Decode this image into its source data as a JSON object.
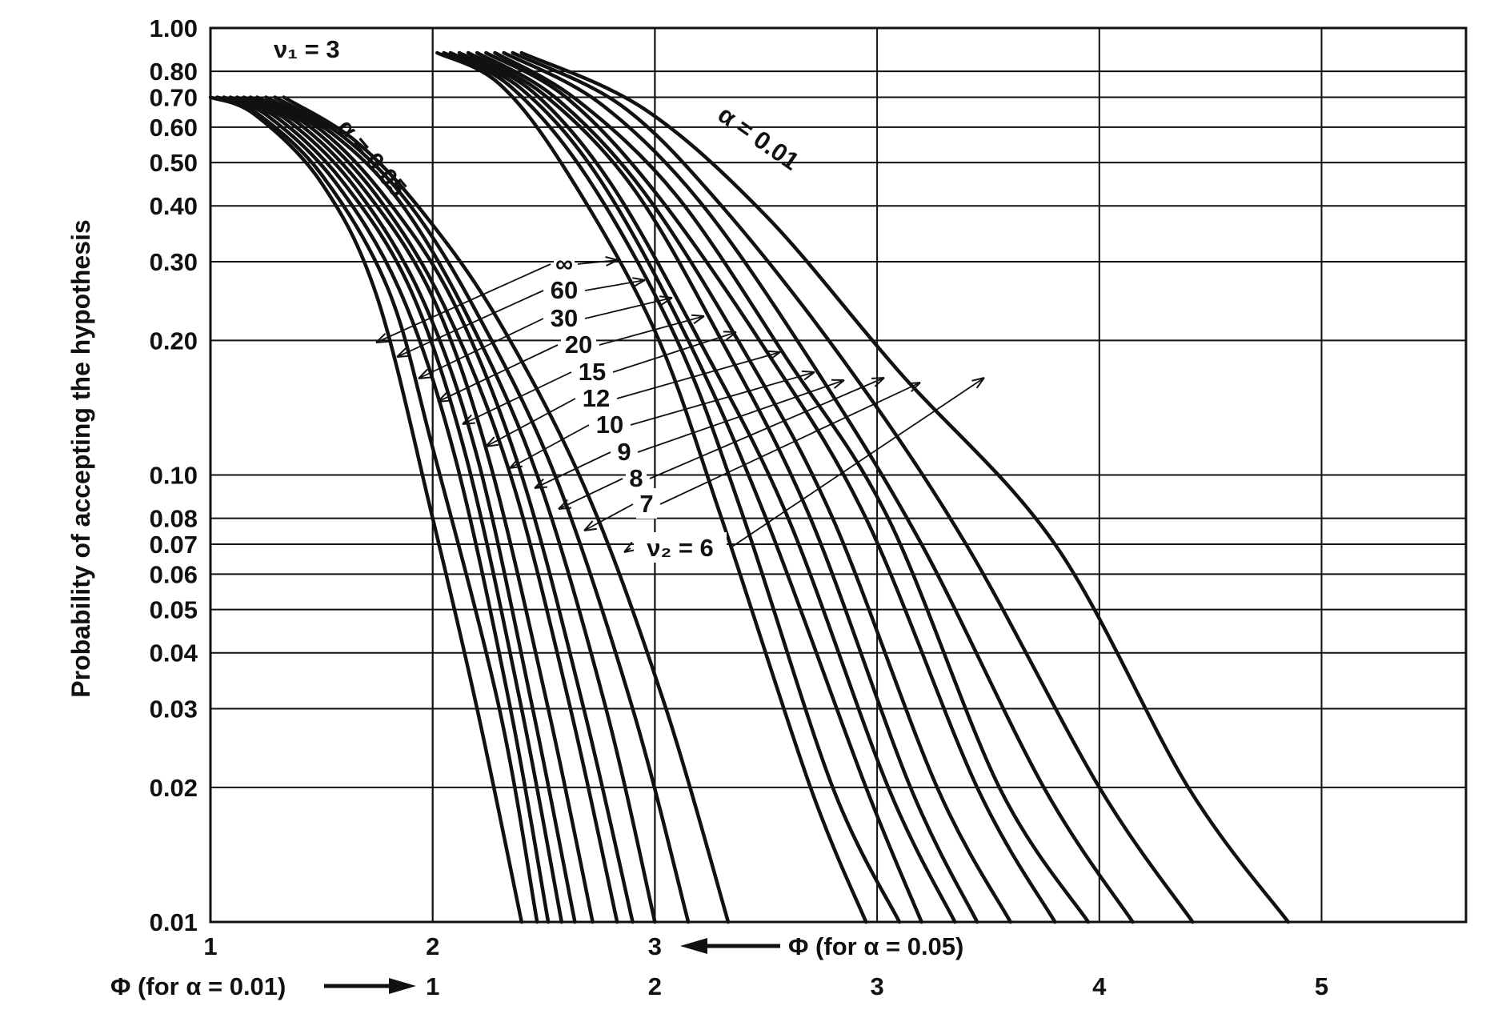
{
  "chart_data": {
    "type": "line",
    "title": "",
    "ylabel": "Probability of accepting the hypothesis",
    "y_scale": "log",
    "ylim": [
      0.01,
      1.0
    ],
    "y_ticks": [
      "1.00",
      "0.80",
      "0.70",
      "0.60",
      "0.50",
      "0.40",
      "0.30",
      "0.20",
      "0.10",
      "0.08",
      "0.07",
      "0.06",
      "0.05",
      "0.04",
      "0.03",
      "0.02",
      "0.01"
    ],
    "y_tick_values": [
      1.0,
      0.8,
      0.7,
      0.6,
      0.5,
      0.4,
      0.3,
      0.2,
      0.1,
      0.08,
      0.07,
      0.06,
      0.05,
      0.04,
      0.03,
      0.02,
      0.01
    ],
    "x_axes": [
      {
        "label": "Φ (for α = 0.05)",
        "ticks": [
          "1",
          "2",
          "3"
        ],
        "tick_values": [
          1,
          2,
          3
        ],
        "xlim": [
          1,
          6.65
        ]
      },
      {
        "label": "Φ (for α = 0.01)",
        "ticks": [
          "1",
          "2",
          "3",
          "4",
          "5"
        ],
        "tick_values": [
          1,
          2,
          3,
          4,
          5
        ],
        "xlim": [
          0,
          5.65
        ]
      }
    ],
    "grid": true,
    "nu1_label": "ν₁ = 3",
    "nu2_labels": [
      "∞",
      "60",
      "30",
      "20",
      "15",
      "12",
      "10",
      "9",
      "8",
      "7",
      "ν₂ = 6"
    ],
    "alpha_labels": [
      "α = 0.05",
      "α = 0.01"
    ],
    "groups": [
      {
        "name": "α = 0.05",
        "series": [
          {
            "name": "∞",
            "points": [
              [
                1.0,
                0.7
              ],
              [
                1.2,
                0.64
              ],
              [
                1.5,
                0.45
              ],
              [
                1.75,
                0.25
              ],
              [
                2.0,
                0.08
              ],
              [
                2.2,
                0.03
              ],
              [
                2.4,
                0.01
              ]
            ]
          },
          {
            "name": "60",
            "points": [
              [
                1.03,
                0.7
              ],
              [
                1.2,
                0.65
              ],
              [
                1.5,
                0.47
              ],
              [
                1.8,
                0.26
              ],
              [
                2.0,
                0.115
              ],
              [
                2.3,
                0.03
              ],
              [
                2.47,
                0.01
              ]
            ]
          },
          {
            "name": "30",
            "points": [
              [
                1.06,
                0.7
              ],
              [
                1.25,
                0.64
              ],
              [
                1.55,
                0.46
              ],
              [
                1.85,
                0.26
              ],
              [
                2.1,
                0.11
              ],
              [
                2.35,
                0.03
              ],
              [
                2.52,
                0.01
              ]
            ]
          },
          {
            "name": "20",
            "points": [
              [
                1.09,
                0.7
              ],
              [
                1.3,
                0.63
              ],
              [
                1.6,
                0.45
              ],
              [
                1.9,
                0.26
              ],
              [
                2.15,
                0.11
              ],
              [
                2.4,
                0.03
              ],
              [
                2.58,
                0.01
              ]
            ]
          },
          {
            "name": "15",
            "points": [
              [
                1.12,
                0.7
              ],
              [
                1.35,
                0.62
              ],
              [
                1.65,
                0.44
              ],
              [
                1.95,
                0.25
              ],
              [
                2.2,
                0.11
              ],
              [
                2.45,
                0.03
              ],
              [
                2.64,
                0.01
              ]
            ]
          },
          {
            "name": "12",
            "points": [
              [
                1.15,
                0.7
              ],
              [
                1.4,
                0.61
              ],
              [
                1.7,
                0.43
              ],
              [
                2.0,
                0.25
              ],
              [
                2.25,
                0.11
              ],
              [
                2.52,
                0.03
              ],
              [
                2.72,
                0.01
              ]
            ]
          },
          {
            "name": "10",
            "points": [
              [
                1.18,
                0.7
              ],
              [
                1.45,
                0.6
              ],
              [
                1.75,
                0.42
              ],
              [
                2.05,
                0.24
              ],
              [
                2.35,
                0.1
              ],
              [
                2.62,
                0.03
              ],
              [
                2.83,
                0.01
              ]
            ]
          },
          {
            "name": "9",
            "points": [
              [
                1.21,
                0.7
              ],
              [
                1.5,
                0.59
              ],
              [
                1.8,
                0.41
              ],
              [
                2.1,
                0.24
              ],
              [
                2.4,
                0.1
              ],
              [
                2.68,
                0.03
              ],
              [
                2.9,
                0.01
              ]
            ]
          },
          {
            "name": "8",
            "points": [
              [
                1.25,
                0.7
              ],
              [
                1.55,
                0.58
              ],
              [
                1.85,
                0.41
              ],
              [
                2.15,
                0.23
              ],
              [
                2.47,
                0.1
              ],
              [
                2.78,
                0.03
              ],
              [
                3.0,
                0.01
              ]
            ]
          },
          {
            "name": "7",
            "points": [
              [
                1.29,
                0.7
              ],
              [
                1.6,
                0.57
              ],
              [
                1.9,
                0.4
              ],
              [
                2.2,
                0.23
              ],
              [
                2.55,
                0.1
              ],
              [
                2.9,
                0.03
              ],
              [
                3.15,
                0.01
              ]
            ]
          },
          {
            "name": "6",
            "points": [
              [
                1.33,
                0.7
              ],
              [
                1.65,
                0.56
              ],
              [
                1.95,
                0.39
              ],
              [
                2.3,
                0.22
              ],
              [
                2.7,
                0.09
              ],
              [
                3.05,
                0.03
              ],
              [
                3.33,
                0.01
              ]
            ]
          }
        ]
      },
      {
        "name": "α = 0.01",
        "series": [
          {
            "name": "∞",
            "points": [
              [
                1.02,
                0.88
              ],
              [
                1.3,
                0.75
              ],
              [
                1.6,
                0.48
              ],
              [
                2.0,
                0.21
              ],
              [
                2.3,
                0.08
              ],
              [
                2.7,
                0.02
              ],
              [
                2.95,
                0.01
              ]
            ]
          },
          {
            "name": "60",
            "points": [
              [
                1.05,
                0.88
              ],
              [
                1.35,
                0.74
              ],
              [
                1.7,
                0.46
              ],
              [
                2.1,
                0.2
              ],
              [
                2.4,
                0.08
              ],
              [
                2.8,
                0.02
              ],
              [
                3.1,
                0.01
              ]
            ]
          },
          {
            "name": "30",
            "points": [
              [
                1.08,
                0.88
              ],
              [
                1.4,
                0.73
              ],
              [
                1.75,
                0.46
              ],
              [
                2.15,
                0.2
              ],
              [
                2.5,
                0.08
              ],
              [
                2.95,
                0.02
              ],
              [
                3.2,
                0.01
              ]
            ]
          },
          {
            "name": "20",
            "points": [
              [
                1.12,
                0.88
              ],
              [
                1.45,
                0.72
              ],
              [
                1.8,
                0.45
              ],
              [
                2.2,
                0.2
              ],
              [
                2.6,
                0.08
              ],
              [
                3.05,
                0.02
              ],
              [
                3.35,
                0.01
              ]
            ]
          },
          {
            "name": "15",
            "points": [
              [
                1.16,
                0.88
              ],
              [
                1.5,
                0.71
              ],
              [
                1.9,
                0.44
              ],
              [
                2.3,
                0.2
              ],
              [
                2.7,
                0.08
              ],
              [
                3.15,
                0.02
              ],
              [
                3.45,
                0.01
              ]
            ]
          },
          {
            "name": "12",
            "points": [
              [
                1.2,
                0.88
              ],
              [
                1.55,
                0.7
              ],
              [
                1.95,
                0.43
              ],
              [
                2.4,
                0.19
              ],
              [
                2.8,
                0.08
              ],
              [
                3.27,
                0.02
              ],
              [
                3.6,
                0.01
              ]
            ]
          },
          {
            "name": "10",
            "points": [
              [
                1.24,
                0.88
              ],
              [
                1.6,
                0.7
              ],
              [
                2.0,
                0.43
              ],
              [
                2.5,
                0.19
              ],
              [
                2.95,
                0.08
              ],
              [
                3.45,
                0.02
              ],
              [
                3.8,
                0.01
              ]
            ]
          },
          {
            "name": "9",
            "points": [
              [
                1.28,
                0.88
              ],
              [
                1.65,
                0.69
              ],
              [
                2.1,
                0.42
              ],
              [
                2.6,
                0.18
              ],
              [
                3.05,
                0.08
              ],
              [
                3.55,
                0.02
              ],
              [
                3.95,
                0.01
              ]
            ]
          },
          {
            "name": "8",
            "points": [
              [
                1.32,
                0.88
              ],
              [
                1.75,
                0.68
              ],
              [
                2.2,
                0.41
              ],
              [
                2.7,
                0.18
              ],
              [
                3.2,
                0.07
              ],
              [
                3.75,
                0.02
              ],
              [
                4.15,
                0.01
              ]
            ]
          },
          {
            "name": "7",
            "points": [
              [
                1.36,
                0.88
              ],
              [
                1.85,
                0.67
              ],
              [
                2.3,
                0.4
              ],
              [
                2.85,
                0.18
              ],
              [
                3.4,
                0.07
              ],
              [
                4.0,
                0.02
              ],
              [
                4.42,
                0.01
              ]
            ]
          },
          {
            "name": "6",
            "points": [
              [
                1.4,
                0.88
              ],
              [
                1.95,
                0.66
              ],
              [
                2.5,
                0.38
              ],
              [
                3.1,
                0.17
              ],
              [
                3.8,
                0.07
              ],
              [
                4.4,
                0.02
              ],
              [
                4.85,
                0.01
              ]
            ]
          }
        ]
      }
    ]
  }
}
